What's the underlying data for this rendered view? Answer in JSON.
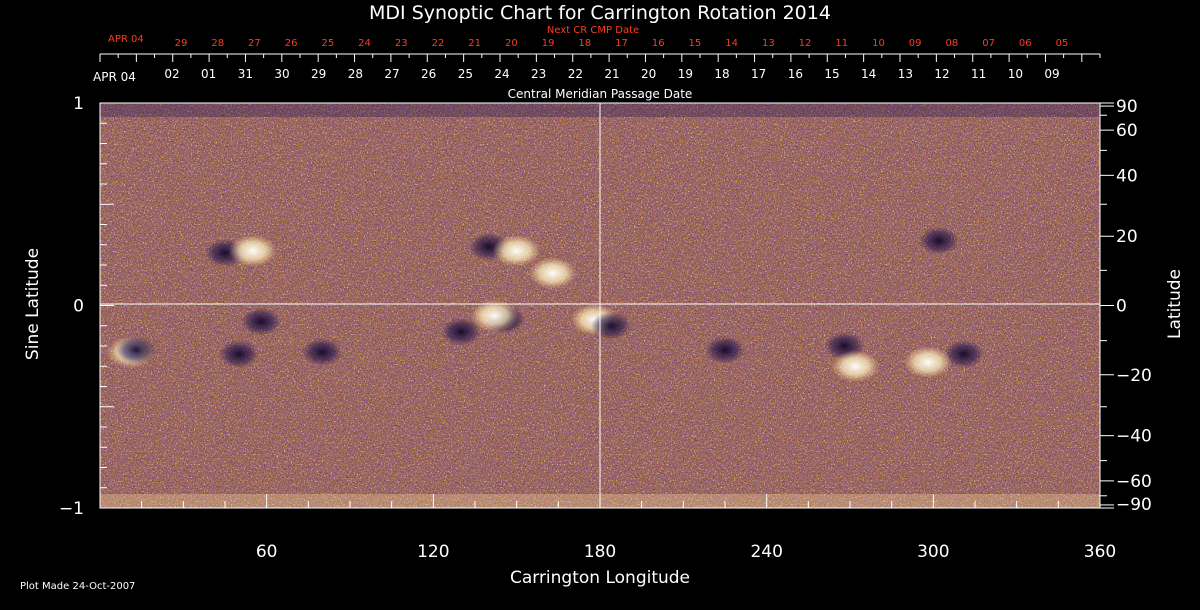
{
  "chart_data": {
    "type": "heatmap",
    "title": "MDI Synoptic Chart for Carrington Rotation 2014",
    "xlabel": "Carrington Longitude",
    "ylabel_left": "Sine Latitude",
    "ylabel_right": "Latitude",
    "xlim": [
      0,
      360
    ],
    "ylim": [
      -1,
      1
    ],
    "x_ticks": [
      60,
      120,
      180,
      240,
      300,
      360
    ],
    "y_ticks_left": [
      1,
      0,
      -1
    ],
    "y_ticks_left_labels": [
      "1",
      "0",
      "−1"
    ],
    "y_ticks_right": [
      90,
      60,
      40,
      20,
      0,
      -20,
      -40,
      -60,
      -90
    ],
    "y_ticks_right_labels": [
      "90",
      "60",
      "40",
      "20",
      "0",
      "−20",
      "−40",
      "−60",
      "−90"
    ],
    "cmp_label": "Central Meridian Passage Date",
    "cmp_start_label": "APR 04",
    "cmp_dates": [
      "02",
      "01",
      "31",
      "30",
      "29",
      "28",
      "27",
      "26",
      "25",
      "24",
      "23",
      "22",
      "21",
      "20",
      "19",
      "18",
      "17",
      "16",
      "15",
      "14",
      "13",
      "12",
      "11",
      "10",
      "09"
    ],
    "next_cmp_label": "Next CR CMP Date",
    "next_cmp_start_label": "APR 04",
    "next_cmp_dates": [
      "29",
      "28",
      "27",
      "26",
      "25",
      "24",
      "23",
      "22",
      "21",
      "20",
      "19",
      "18",
      "17",
      "16",
      "15",
      "14",
      "13",
      "12",
      "11",
      "10",
      "09",
      "08",
      "07",
      "06",
      "05"
    ],
    "grid": "crosshair at 180 longitude and 0 latitude",
    "colors": {
      "background": "#000000",
      "field": "#ff5a10",
      "negative": "#1c1040",
      "positive": "#fff6c8",
      "next_cr_text": "#ff3b1e"
    },
    "active_regions": [
      {
        "lon": 45,
        "sinlat": 0.26,
        "pol": "neg"
      },
      {
        "lon": 55,
        "sinlat": 0.27,
        "pol": "pos"
      },
      {
        "lon": 58,
        "sinlat": -0.08,
        "pol": "neg"
      },
      {
        "lon": 11,
        "sinlat": -0.23,
        "pol": "pos"
      },
      {
        "lon": 13,
        "sinlat": -0.22,
        "pol": "neg"
      },
      {
        "lon": 50,
        "sinlat": -0.24,
        "pol": "neg"
      },
      {
        "lon": 80,
        "sinlat": -0.23,
        "pol": "neg"
      },
      {
        "lon": 140,
        "sinlat": 0.29,
        "pol": "neg"
      },
      {
        "lon": 150,
        "sinlat": 0.27,
        "pol": "pos"
      },
      {
        "lon": 163,
        "sinlat": 0.16,
        "pol": "pos"
      },
      {
        "lon": 130,
        "sinlat": -0.13,
        "pol": "neg"
      },
      {
        "lon": 146,
        "sinlat": -0.07,
        "pol": "neg"
      },
      {
        "lon": 142,
        "sinlat": -0.05,
        "pol": "pos"
      },
      {
        "lon": 178,
        "sinlat": -0.07,
        "pol": "pos"
      },
      {
        "lon": 184,
        "sinlat": -0.1,
        "pol": "neg"
      },
      {
        "lon": 225,
        "sinlat": -0.22,
        "pol": "neg"
      },
      {
        "lon": 268,
        "sinlat": -0.2,
        "pol": "neg"
      },
      {
        "lon": 272,
        "sinlat": -0.3,
        "pol": "pos"
      },
      {
        "lon": 302,
        "sinlat": 0.32,
        "pol": "neg"
      },
      {
        "lon": 311,
        "sinlat": -0.24,
        "pol": "neg"
      },
      {
        "lon": 298,
        "sinlat": -0.28,
        "pol": "pos"
      }
    ]
  },
  "footer": {
    "plot_made": "Plot Made 24-Oct-2007"
  }
}
